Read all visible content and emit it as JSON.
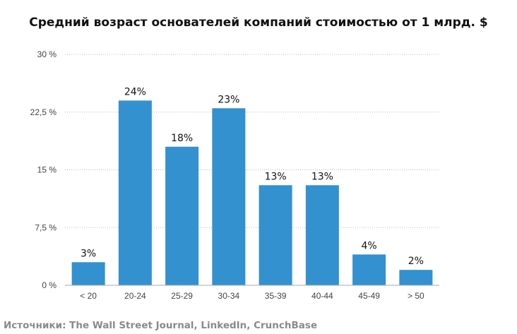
{
  "chart_data": {
    "type": "bar",
    "title": "Средний возраст основателей компаний стоимостью от 1 млрд. $",
    "categories": [
      "< 20",
      "20-24",
      "25-29",
      "30-34",
      "35-39",
      "40-44",
      "45-49",
      "> 50"
    ],
    "values": [
      3,
      24,
      18,
      23,
      13,
      13,
      4,
      2
    ],
    "data_labels": [
      "3%",
      "24%",
      "18%",
      "23%",
      "13%",
      "13%",
      "4%",
      "2%"
    ],
    "ylim": [
      0,
      30
    ],
    "yticks": [
      0,
      7.5,
      15,
      22.5,
      30
    ],
    "ytick_labels": [
      "0 %",
      "7,5 %",
      "15 %",
      "22,5 %",
      "30 %"
    ],
    "grid": "horizontal dotted",
    "bar_color": "#3391cf",
    "xlabel": "",
    "ylabel": ""
  },
  "source": "Источники: The Wall Street Journal, LinkedIn, CrunchBase"
}
